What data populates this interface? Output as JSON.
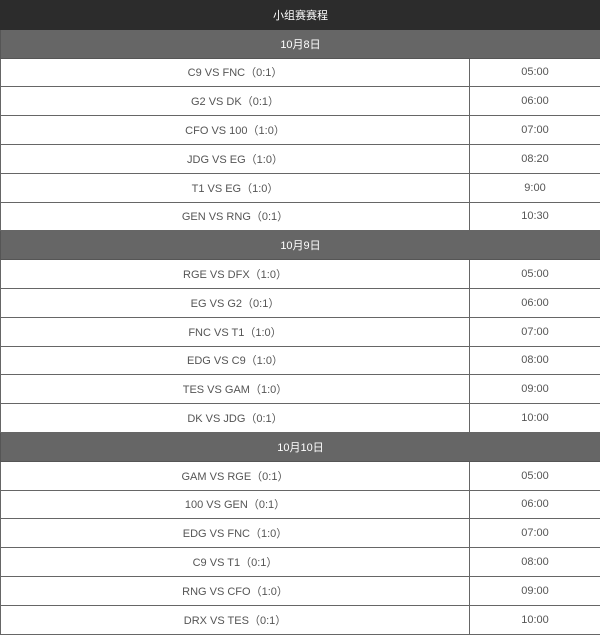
{
  "title": "小组赛赛程",
  "days": [
    {
      "date": "10月8日",
      "matches": [
        {
          "match": "C9 VS FNC（0:1）",
          "time": "05:00"
        },
        {
          "match": "G2 VS DK（0:1）",
          "time": "06:00"
        },
        {
          "match": "CFO VS 100（1:0）",
          "time": "07:00"
        },
        {
          "match": "JDG VS EG（1:0）",
          "time": "08:20"
        },
        {
          "match": "T1 VS EG（1:0）",
          "time": "9:00"
        },
        {
          "match": "GEN VS RNG（0:1）",
          "time": "10:30"
        }
      ]
    },
    {
      "date": "10月9日",
      "matches": [
        {
          "match": "RGE VS DFX（1:0）",
          "time": "05:00"
        },
        {
          "match": "EG VS G2（0:1）",
          "time": "06:00"
        },
        {
          "match": "FNC VS T1（1:0）",
          "time": "07:00"
        },
        {
          "match": "EDG VS C9（1:0）",
          "time": "08:00"
        },
        {
          "match": "TES VS GAM（1:0）",
          "time": "09:00"
        },
        {
          "match": "DK VS JDG（0:1）",
          "time": "10:00"
        }
      ]
    },
    {
      "date": "10月10日",
      "matches": [
        {
          "match": "GAM VS RGE（0:1）",
          "time": "05:00"
        },
        {
          "match": "100 VS GEN（0:1）",
          "time": "06:00"
        },
        {
          "match": "EDG VS FNC（1:0）",
          "time": "07:00"
        },
        {
          "match": "C9 VS T1（0:1）",
          "time": "08:00"
        },
        {
          "match": "RNG VS CFO（1:0）",
          "time": "09:00"
        },
        {
          "match": "DRX VS TES（0:1）",
          "time": "10:00"
        }
      ]
    }
  ]
}
